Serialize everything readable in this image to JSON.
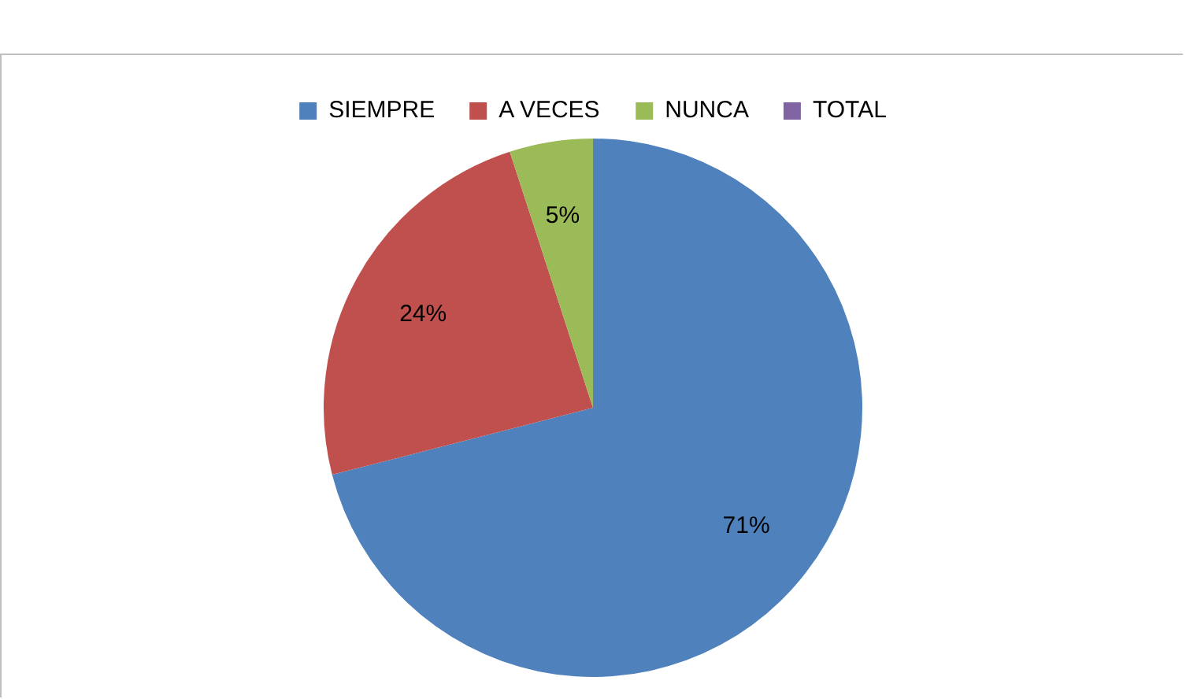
{
  "chart_data": {
    "type": "pie",
    "categories": [
      "SIEMPRE",
      "A VECES",
      "NUNCA",
      "TOTAL"
    ],
    "values": [
      71,
      24,
      5,
      0
    ],
    "colors": [
      "#4f81bd",
      "#c0504d",
      "#9bbb59",
      "#8064a2"
    ],
    "value_labels": [
      "71%",
      "24%",
      "5%",
      null
    ],
    "legend": "top"
  }
}
